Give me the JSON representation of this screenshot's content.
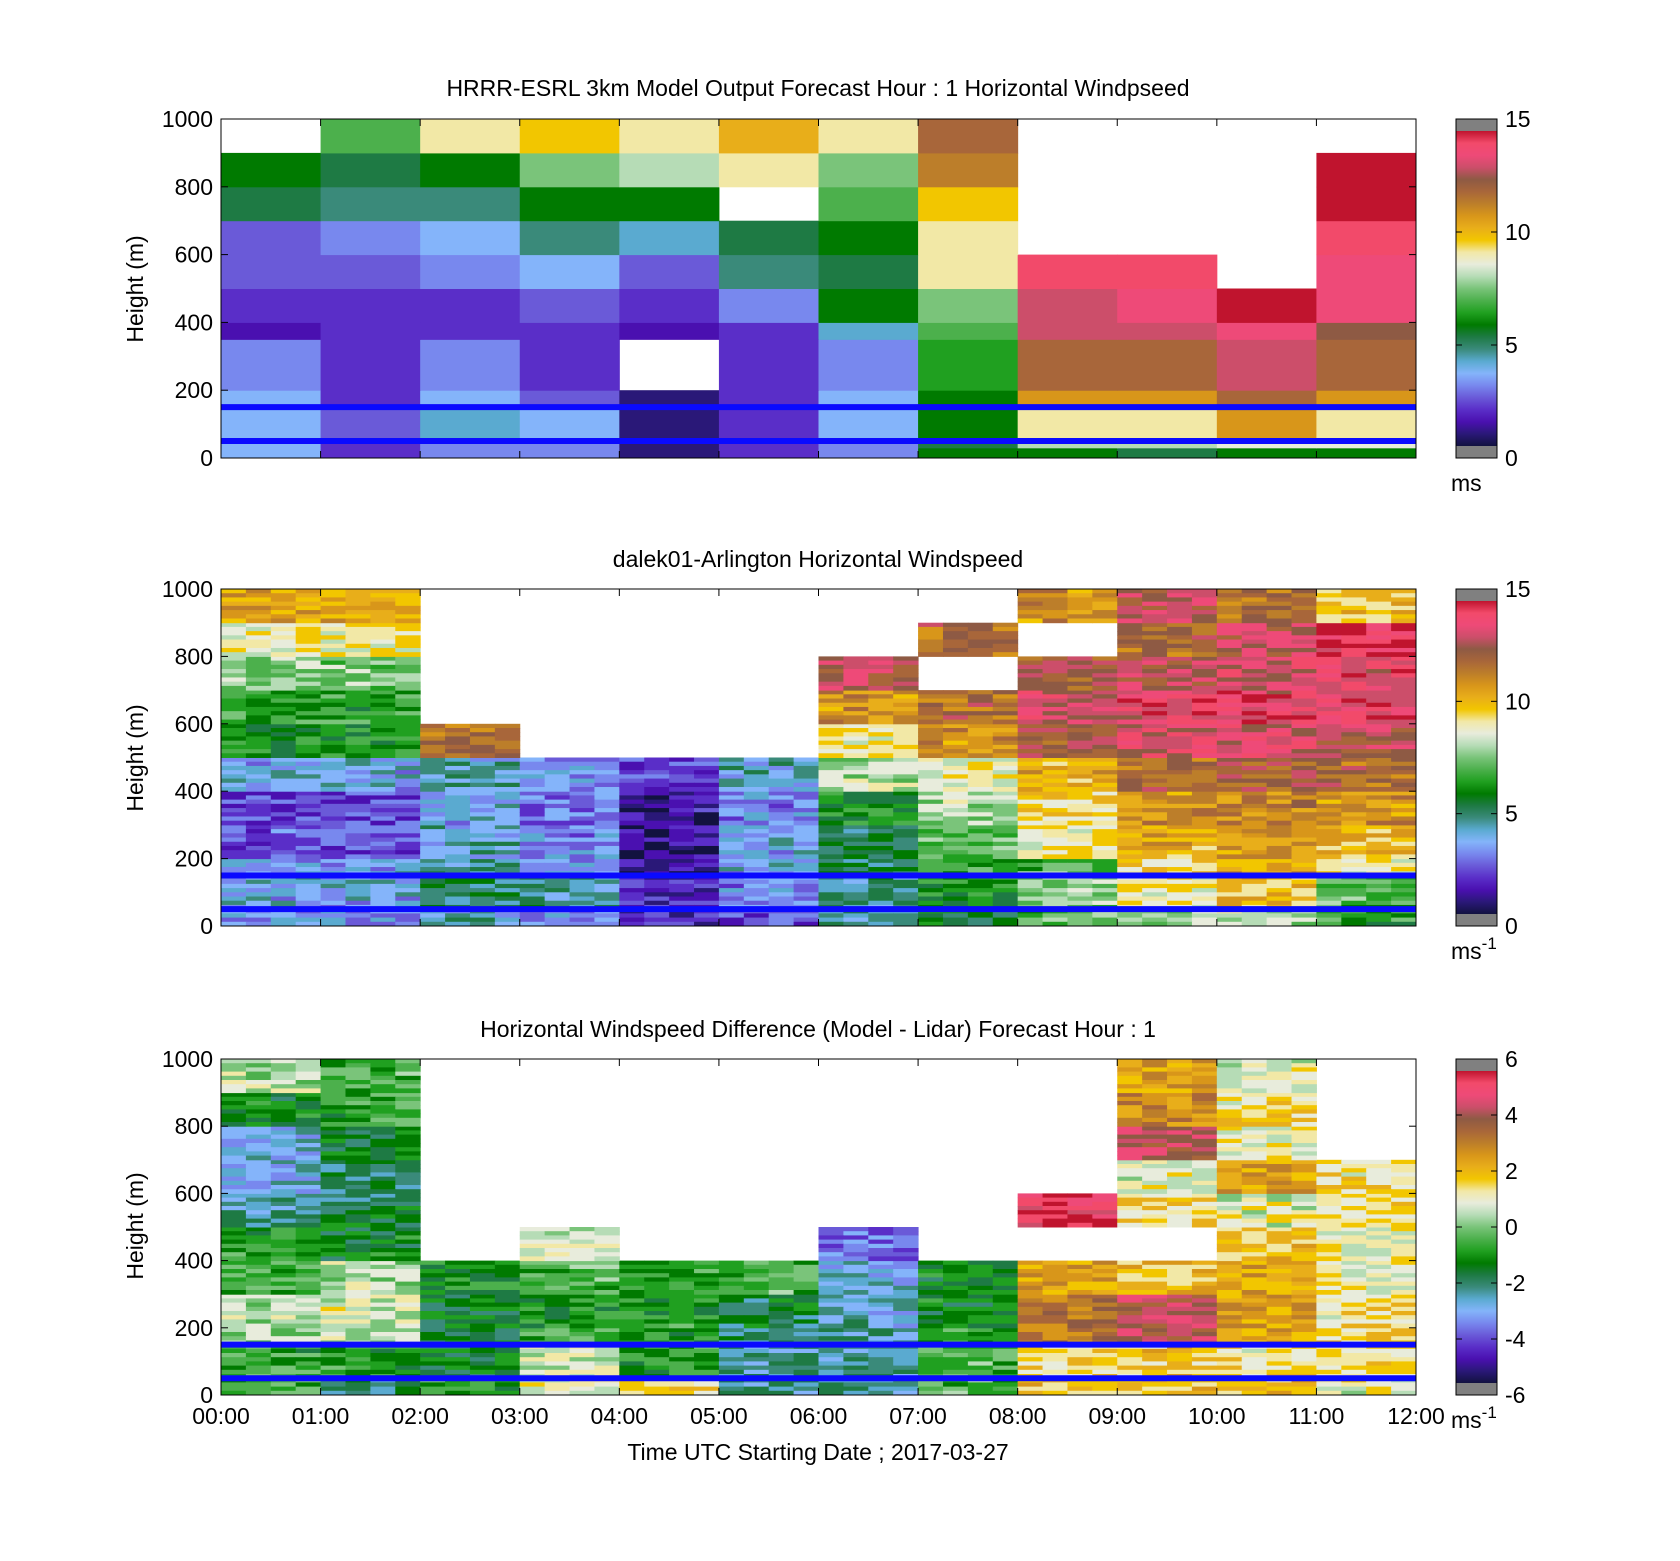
{
  "figure": {
    "xlabel": "Time UTC  Starting Date ; 2017-03-27",
    "x_ticks": [
      "00:00",
      "01:00",
      "02:00",
      "03:00",
      "04:00",
      "05:00",
      "06:00",
      "07:00",
      "08:00",
      "09:00",
      "10:00",
      "11:00",
      "12:00"
    ]
  },
  "colormap": [
    "#121240",
    "#2a1878",
    "#4a10b0",
    "#5a2ec8",
    "#6a5ad8",
    "#7888ee",
    "#84b4fa",
    "#5aaad0",
    "#3a8a7a",
    "#1e7a44",
    "#007a00",
    "#20a020",
    "#4cb04c",
    "#7ac47a",
    "#b6dcb6",
    "#e8ecdc",
    "#f2e8a6",
    "#f2c600",
    "#e8ae1a",
    "#d8961a",
    "#bc7e2a",
    "#a8663a",
    "#8e5a44",
    "#cc4e6a",
    "#ee4a78",
    "#f24a6a",
    "#c0142e"
  ],
  "chart_data": [
    {
      "type": "heatmap",
      "title": "HRRR-ESRL 3km Model Output   Forecast Hour : 1 Horizontal Windpseed",
      "ylabel": "Height (m)",
      "xlim": [
        "00:00",
        "12:00"
      ],
      "ylim": [
        0,
        1000
      ],
      "y_ticks": [
        0,
        200,
        400,
        600,
        800,
        1000
      ],
      "colorbar": {
        "min": 0,
        "max": 15,
        "ticks": [
          0,
          5,
          10,
          15
        ],
        "unit": "ms"
      },
      "reference_lines_m": [
        50,
        150
      ],
      "height_bins_m": [
        0,
        30,
        50,
        150,
        200,
        350,
        400,
        500,
        600,
        700,
        800,
        900,
        1000
      ],
      "speed_ms": [
        [
          3.5,
          1.8,
          3.0,
          3.0,
          0.6,
          2.0,
          3.0,
          6.0,
          5.5,
          5.0,
          5.5,
          5.5
        ],
        [
          3.5,
          1.8,
          3.0,
          3.0,
          0.6,
          2.0,
          3.0,
          5.0,
          8.0,
          8.0,
          8.5,
          8.5
        ],
        [
          3.5,
          2.2,
          3.8,
          3.5,
          0.7,
          2.0,
          3.5,
          6.0,
          9.5,
          9.5,
          11.0,
          9.5
        ],
        [
          3.2,
          1.8,
          3.5,
          2.5,
          0.5,
          1.5,
          3.5,
          6.0,
          11.0,
          11.0,
          12.0,
          11.0
        ],
        [
          3.0,
          1.8,
          3.0,
          2.0,
          null,
          1.5,
          3.0,
          6.5,
          12.0,
          12.0,
          13.0,
          12.0
        ],
        [
          1.2,
          1.5,
          1.8,
          1.8,
          1.2,
          2.0,
          4.0,
          7.0,
          13.5,
          13.5,
          14.0,
          12.5
        ],
        [
          1.5,
          1.8,
          1.8,
          2.5,
          1.8,
          3.0,
          5.5,
          7.5,
          13.5,
          14.0,
          15.0,
          14.0
        ],
        [
          2.2,
          2.4,
          2.6,
          3.4,
          2.2,
          4.8,
          5.0,
          9.0,
          14.5,
          14.5,
          null,
          14.0
        ],
        [
          2.2,
          2.8,
          3.2,
          4.5,
          4.0,
          5.0,
          5.8,
          9.0,
          null,
          null,
          null,
          14.5
        ],
        [
          5.0,
          4.8,
          4.8,
          6.0,
          6.0,
          null,
          7.0,
          10.0,
          null,
          null,
          null,
          14.8
        ],
        [
          5.5,
          5.0,
          6.0,
          7.5,
          7.8,
          9.0,
          7.5,
          11.5,
          null,
          null,
          null,
          14.8
        ],
        [
          null,
          7.0,
          9.0,
          10.0,
          9.0,
          10.5,
          9.0,
          12.0,
          null,
          null,
          null,
          null
        ]
      ]
    },
    {
      "type": "heatmap",
      "title": "dalek01-Arlington  Horizontal Windspeed",
      "ylabel": "Height (m)",
      "xlim": [
        "00:00",
        "12:00"
      ],
      "ylim": [
        0,
        1000
      ],
      "y_ticks": [
        0,
        200,
        400,
        600,
        800,
        1000
      ],
      "colorbar": {
        "min": 0,
        "max": 15,
        "ticks": [
          0,
          5,
          10,
          15
        ],
        "unit": "ms-1"
      },
      "reference_lines_m": [
        50,
        150
      ],
      "time_bins_h": [
        0,
        2,
        3,
        4,
        5,
        6,
        7,
        8,
        9,
        10,
        11,
        12
      ],
      "height_bins_m": [
        0,
        50,
        150,
        200,
        300,
        400,
        500,
        600,
        700,
        800,
        900,
        1000
      ],
      "speed_ms": [
        [
          3.2,
          4.0,
          3.0,
          1.5,
          2.0,
          4.5,
          5.5,
          7.0,
          8.0,
          8.0,
          6.5
        ],
        [
          3.5,
          5.0,
          4.5,
          1.5,
          3.0,
          4.5,
          6.0,
          7.5,
          9.0,
          10.0,
          7.0
        ],
        [
          3.5,
          4.5,
          3.5,
          1.0,
          3.5,
          5.0,
          6.5,
          7.0,
          9.5,
          10.5,
          9.0
        ],
        [
          2.2,
          4.0,
          3.0,
          0.8,
          3.5,
          5.0,
          7.0,
          9.0,
          10.5,
          11.0,
          10.0
        ],
        [
          2.0,
          3.5,
          2.5,
          1.0,
          3.0,
          6.0,
          8.0,
          9.5,
          11.0,
          11.5,
          11.0
        ],
        [
          3.5,
          4.0,
          3.0,
          2.0,
          4.0,
          8.0,
          9.0,
          10.5,
          12.0,
          12.5,
          12.0
        ],
        [
          6.0,
          12.0,
          null,
          null,
          null,
          9.0,
          11.0,
          12.5,
          13.5,
          13.5,
          13.0
        ],
        [
          6.5,
          null,
          null,
          null,
          null,
          11.0,
          12.0,
          13.5,
          14.0,
          14.0,
          14.0
        ],
        [
          7.5,
          null,
          null,
          null,
          null,
          13.0,
          null,
          12.5,
          13.0,
          13.5,
          14.0
        ],
        [
          9.0,
          null,
          null,
          null,
          null,
          null,
          12.0,
          null,
          12.0,
          13.0,
          14.5
        ],
        [
          10.5,
          null,
          null,
          null,
          null,
          null,
          null,
          11.0,
          13.0,
          12.0,
          10.0
        ]
      ]
    },
    {
      "type": "heatmap",
      "title": "Horizontal Windspeed Difference (Model - Lidar) Forecast Hour : 1",
      "ylabel": "Height (m)",
      "xlim": [
        "00:00",
        "12:00"
      ],
      "ylim": [
        0,
        1000
      ],
      "y_ticks": [
        0,
        200,
        400,
        600,
        800,
        1000
      ],
      "colorbar": {
        "min": -6,
        "max": 6,
        "ticks": [
          -6,
          -4,
          -2,
          0,
          2,
          4,
          6
        ],
        "unit": "ms-1"
      },
      "reference_lines_m": [
        50,
        150
      ],
      "height_bins_m": [
        0,
        50,
        150,
        200,
        300,
        400,
        500,
        600,
        700,
        800,
        900,
        1000
      ],
      "diff_ms": [
        [
          -0.5,
          -2.0,
          -1.0,
          1.0,
          1.5,
          -2.5,
          -2.5,
          -0.5,
          2.0,
          2.0,
          2.0,
          1.0
        ],
        [
          -0.8,
          -1.0,
          -1.5,
          0.8,
          -1.0,
          -2.5,
          -2.5,
          -0.5,
          1.5,
          1.8,
          1.5,
          1.5
        ],
        [
          0.3,
          0.8,
          -1.8,
          -0.5,
          -1.0,
          -2.0,
          -2.5,
          -0.8,
          3.5,
          4.5,
          2.5,
          1.5
        ],
        [
          0.5,
          0.8,
          -1.5,
          -1.0,
          -1.0,
          -1.8,
          -2.8,
          -1.5,
          3.5,
          4.5,
          2.5,
          1.5
        ],
        [
          -0.5,
          0.5,
          -1.2,
          -0.5,
          -1.0,
          -0.5,
          -3.0,
          -1.5,
          2.5,
          2.0,
          2.5,
          1.2
        ],
        [
          -1.0,
          -1.5,
          null,
          0.8,
          null,
          null,
          -4.0,
          null,
          null,
          null,
          2.0,
          1.0
        ],
        [
          -2.5,
          -1.8,
          null,
          null,
          null,
          null,
          null,
          null,
          5.5,
          1.5,
          1.0,
          1.5
        ],
        [
          -3.0,
          -2.0,
          null,
          null,
          null,
          null,
          null,
          null,
          null,
          1.0,
          2.5,
          1.5
        ],
        [
          -3.0,
          -1.5,
          null,
          null,
          null,
          null,
          null,
          null,
          null,
          4.5,
          1.0,
          null
        ],
        [
          -1.5,
          -0.8,
          null,
          null,
          null,
          null,
          null,
          null,
          null,
          3.0,
          1.5,
          null
        ],
        [
          0.5,
          -0.5,
          null,
          null,
          null,
          null,
          null,
          null,
          null,
          2.5,
          1.0,
          null
        ]
      ]
    }
  ]
}
